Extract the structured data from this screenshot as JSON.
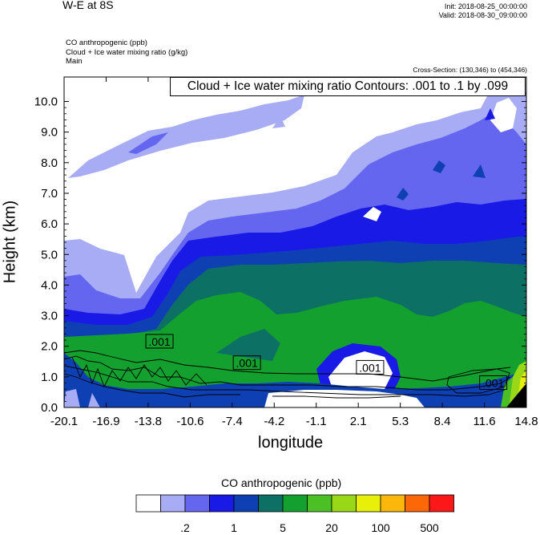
{
  "header": {
    "title": "W-E at 8S",
    "init": "Init: 2018-08-25_00:00:00",
    "valid": "Valid: 2018-08-30_09:00:00",
    "fields": [
      "CO anthropogenic   (ppb)",
      "Cloud + Ice water mixing ratio   (g/kg)",
      "Main"
    ],
    "cross_section": "Cross-Section: (130,346) to (454,346)"
  },
  "chart_data": {
    "type": "heatmap",
    "contour_info": "Cloud + Ice water mixing ratio Contours: .001 to .1 by .099",
    "xlabel": "longitude",
    "ylabel": "Height (km)",
    "x_ticks": [
      "-20.1",
      "-16.9",
      "-13.8",
      "-10.6",
      "-7.4",
      "-4.2",
      "-1.1",
      "2.1",
      "5.3",
      "8.4",
      "11.6",
      "14.8"
    ],
    "x_range": [
      -20.1,
      14.8
    ],
    "y_ticks": [
      "0.0",
      "1.0",
      "2.0",
      "3.0",
      "4.0",
      "5.0",
      "6.0",
      "7.0",
      "8.0",
      "9.0",
      "10.0"
    ],
    "y_range": [
      0,
      10.8
    ],
    "contour_labels": [
      {
        "text": ".001",
        "x": -12.9,
        "y": 2.15
      },
      {
        "text": ".001",
        "x": -6.3,
        "y": 1.45
      },
      {
        "text": ".001",
        "x": 3.0,
        "y": 1.3
      },
      {
        "text": ".001",
        "x": 12.3,
        "y": 0.8
      }
    ],
    "colorbar": {
      "title": "CO anthropogenic  (ppb)",
      "colors": [
        "#ffffff",
        "#a8acf4",
        "#6466f0",
        "#1a1ae6",
        "#0e40b4",
        "#0c7064",
        "#14a02e",
        "#4ac024",
        "#98d816",
        "#e8f00a",
        "#fcb80a",
        "#fc6808",
        "#fc1818"
      ],
      "labels": [
        ".2",
        "1",
        "5",
        "20",
        "100",
        "500"
      ]
    }
  }
}
